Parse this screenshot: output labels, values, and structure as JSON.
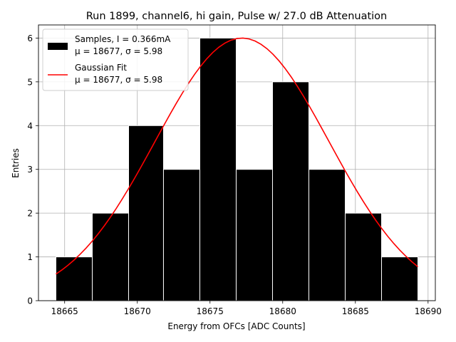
{
  "chart_data": {
    "type": "bar",
    "title": "Run 1899, channel6, hi gain, Pulse w/ 27.0 dB Attenuation",
    "xlabel": "Energy from OFCs [ADC Counts]",
    "ylabel": "Entries",
    "xlim": [
      18663.2,
      18690.5
    ],
    "ylim": [
      0,
      6.3
    ],
    "grid": true,
    "legend_position": "top-left",
    "x_ticks": [
      18665,
      18670,
      18675,
      18680,
      18685,
      18690
    ],
    "y_ticks": [
      0,
      1,
      2,
      3,
      4,
      5,
      6
    ],
    "histogram": {
      "name": "Samples, I = 0.366mA",
      "stats_label": "μ = 18677, σ = 5.98",
      "bin_edges": [
        18664.4,
        18666.9,
        18669.4,
        18671.8,
        18674.3,
        18676.8,
        18679.3,
        18681.8,
        18684.3,
        18686.8,
        18689.3
      ],
      "counts": [
        1,
        2,
        4,
        3,
        6,
        3,
        5,
        3,
        2,
        1
      ],
      "color": "#000000",
      "edge_color": "#ffffff"
    },
    "fit": {
      "name": "Gaussian Fit",
      "stats_label": "μ = 18677, σ = 5.98",
      "mu": 18677.2,
      "sigma": 5.98,
      "amplitude": 6.0,
      "x_range": [
        18664.4,
        18689.3
      ],
      "color": "#ff0000"
    }
  }
}
